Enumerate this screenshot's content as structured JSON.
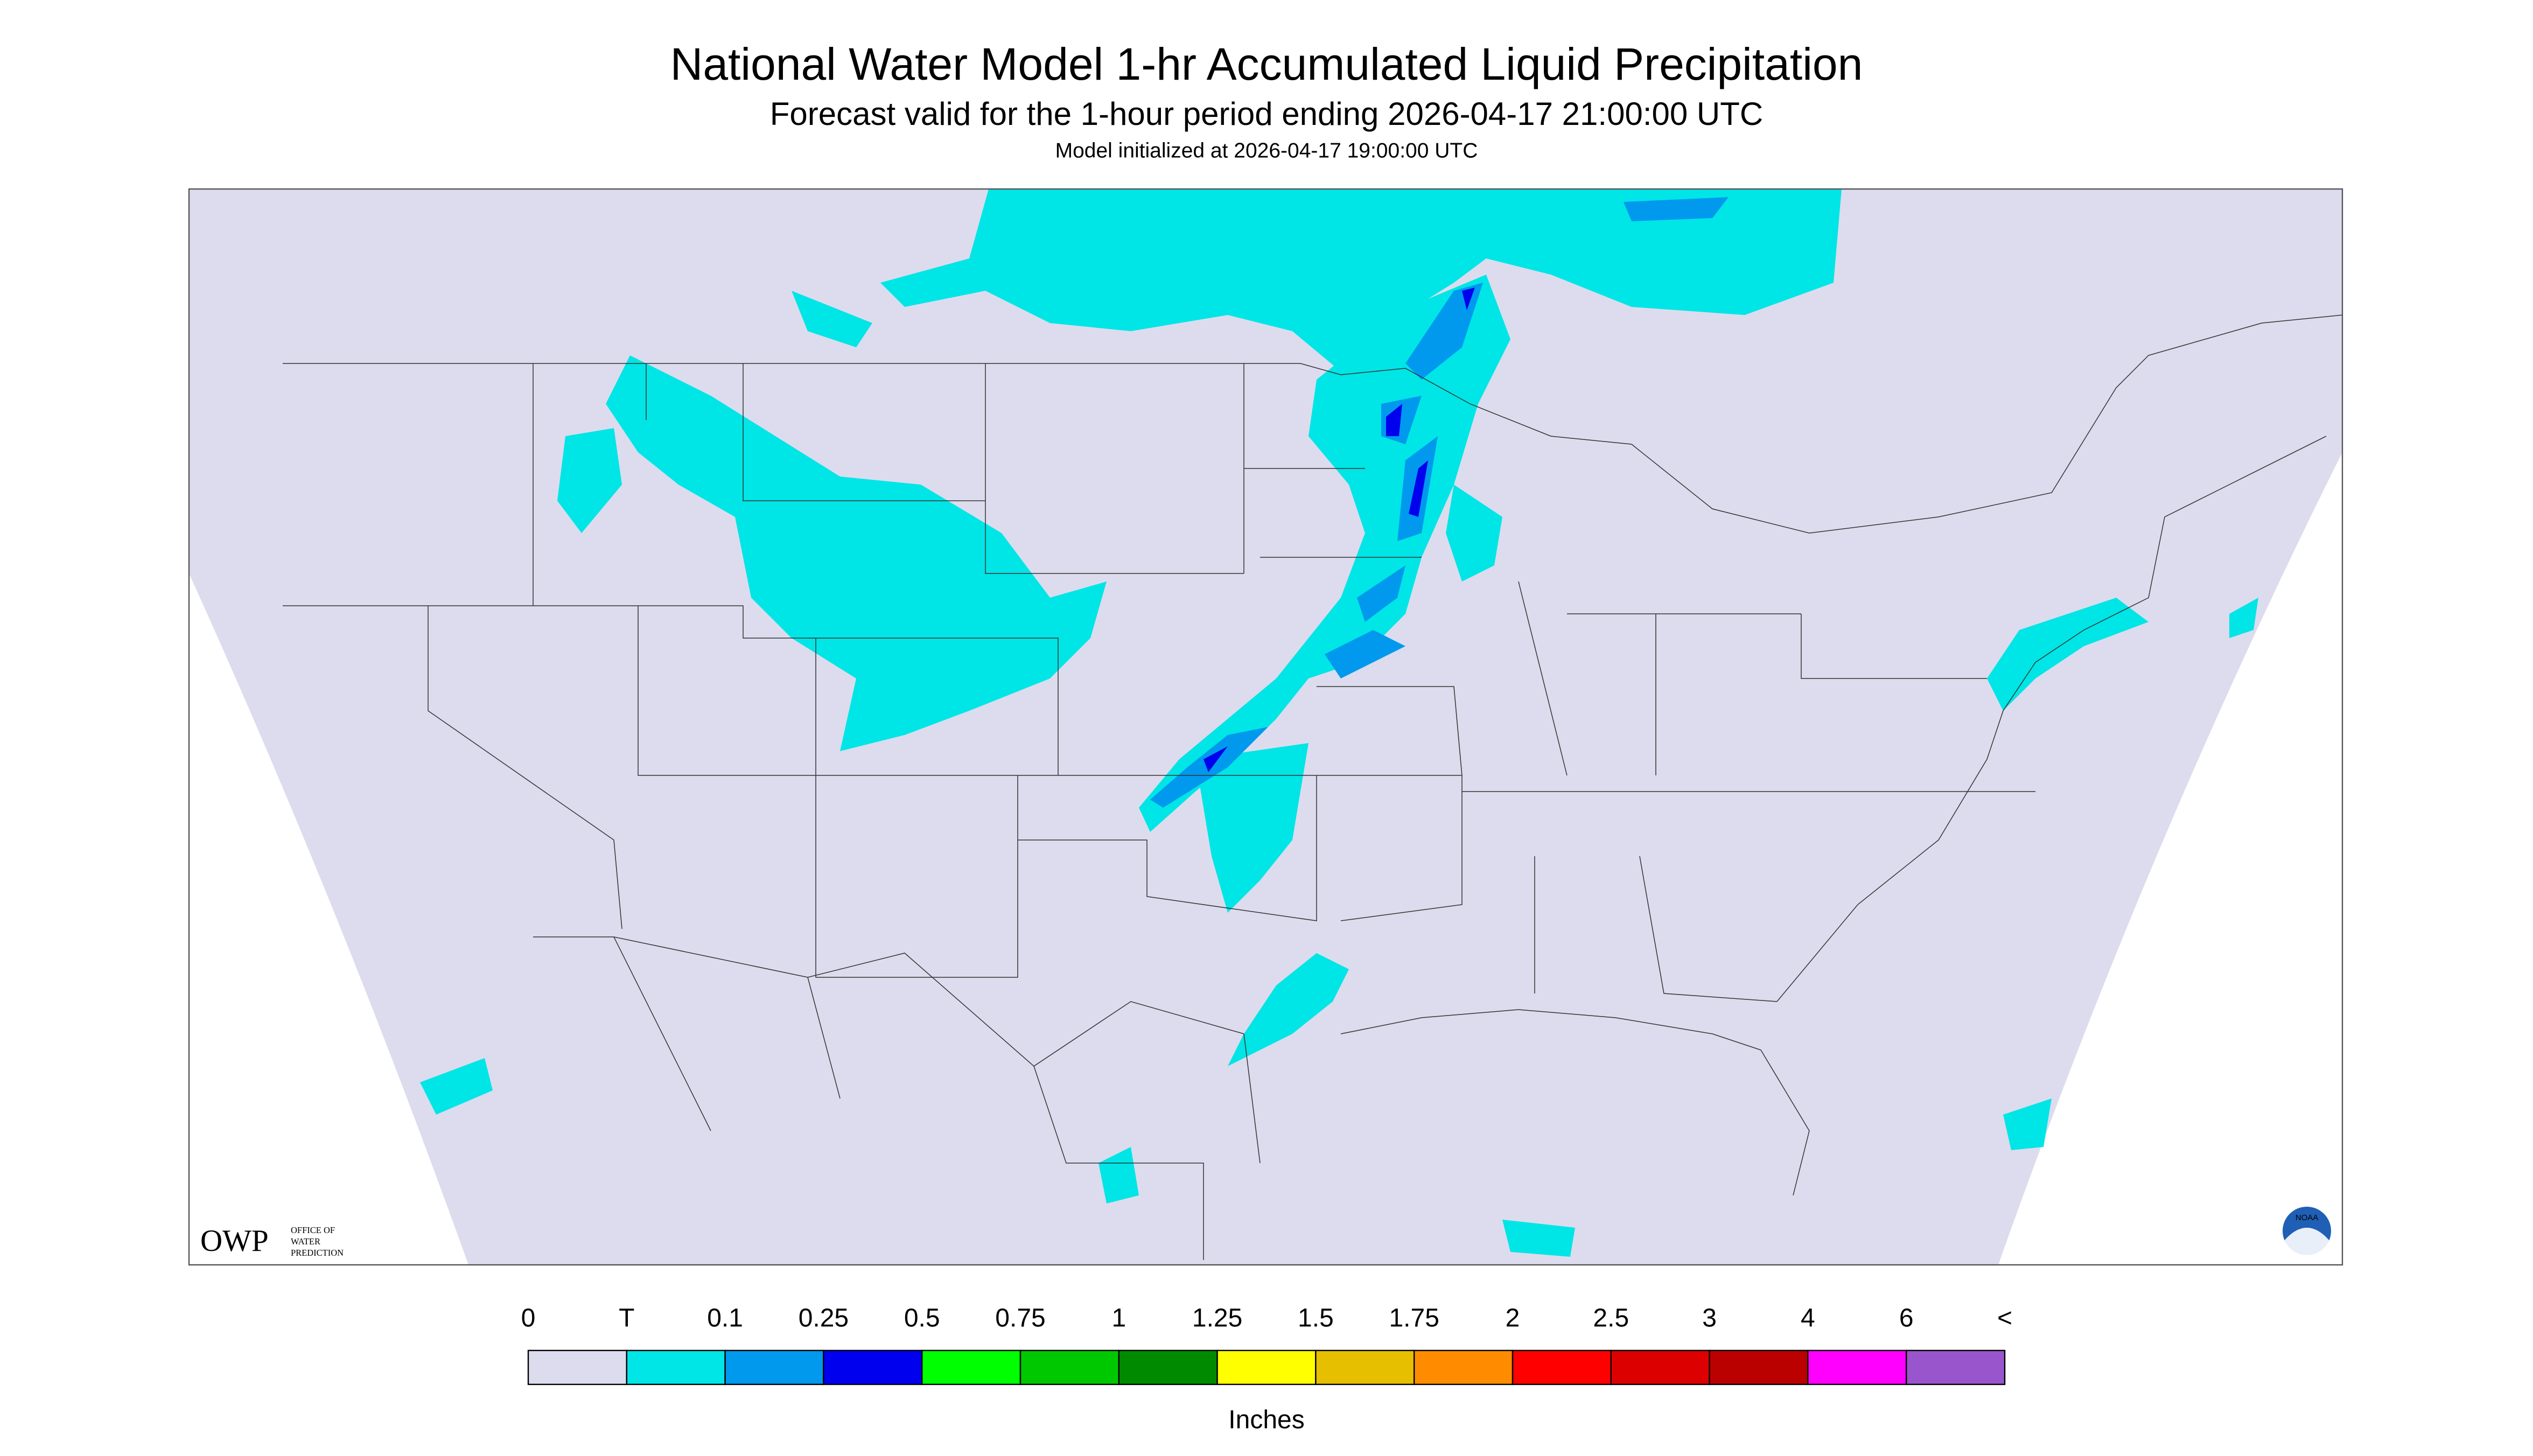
{
  "header": {
    "title": "National Water Model 1-hr Accumulated Liquid Precipitation",
    "subtitle": "Forecast valid for the 1-hour period ending 2026-04-17 21:00:00 UTC",
    "note": "Model initialized at 2026-04-17 19:00:00 UTC"
  },
  "legend": {
    "labels": [
      "0",
      "T",
      "0.1",
      "0.25",
      "0.5",
      "0.75",
      "1",
      "1.25",
      "1.5",
      "1.75",
      "2",
      "2.5",
      "3",
      "4",
      "6",
      "<"
    ],
    "colors": [
      "#dcdcee",
      "#00e5e5",
      "#0099ee",
      "#0000ee",
      "#00ff00",
      "#00c800",
      "#008a00",
      "#ffff00",
      "#e6bf00",
      "#ff8c00",
      "#ff0000",
      "#dd0000",
      "#bb0000",
      "#ff00ff",
      "#9955cc"
    ],
    "unit": "Inches"
  },
  "logos": {
    "owp": "OWP",
    "owp_text": [
      "OFFICE OF",
      "WATER",
      "PREDICTION"
    ],
    "noaa": "NOAA"
  }
}
